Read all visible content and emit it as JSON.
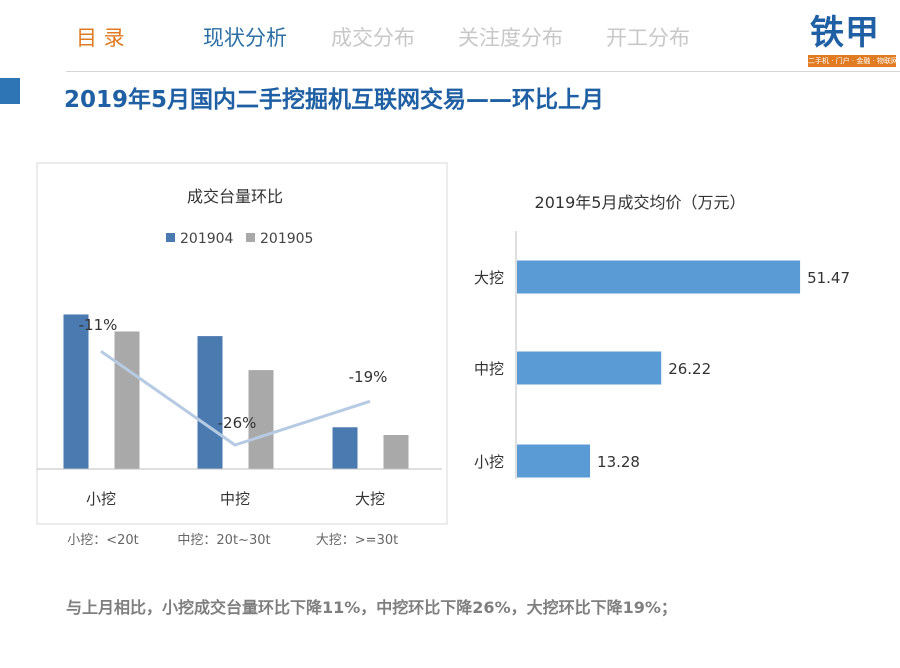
{
  "nav": {
    "toc": "目 录",
    "items": [
      "现状分析",
      "成交分布",
      "关注度分布",
      "开工分布"
    ],
    "active_index": 0
  },
  "logo": {
    "text": "铁甲",
    "tagline": "二手机 · 门户 · 金融 · 物联网"
  },
  "page_title": "2019年5月国内二手挖掘机互联网交易——环比上月",
  "summary": "与上月相比，小挖成交台量环比下降11%，中挖环比下降26%，大挖环比下降19%；",
  "colors": {
    "accent": "#2e75b6",
    "series_a": "#4a7ab0",
    "series_b": "#a9a9a9",
    "trend_line": "#b6cbe3",
    "price_bar": "#5b9bd5",
    "nav_toc": "#e07b22",
    "nav_active": "#2c6fa5",
    "nav_inactive": "#c8c8c8"
  },
  "chart_data": [
    {
      "type": "bar",
      "title": "成交台量环比",
      "categories": [
        "小挖",
        "中挖",
        "大挖"
      ],
      "category_notes": [
        "小挖：<20t",
        "中挖：20t~30t",
        "大挖：>=30t"
      ],
      "series": [
        {
          "name": "201904",
          "values": [
            100,
            86,
            27
          ]
        },
        {
          "name": "201905",
          "values": [
            89,
            64,
            22
          ]
        }
      ],
      "change_line": {
        "values": [
          -11,
          -26,
          -19
        ],
        "labels": [
          "-11%",
          "-26%",
          "-19%"
        ]
      },
      "ylim": [
        0,
        110
      ],
      "legend": "top-center",
      "grid": false
    },
    {
      "type": "bar",
      "orientation": "horizontal",
      "title": "2019年5月成交均价（万元）",
      "categories": [
        "大挖",
        "中挖",
        "小挖"
      ],
      "values": [
        51.47,
        26.22,
        13.28
      ],
      "value_labels": [
        "51.47",
        "26.22",
        "13.28"
      ],
      "xlim": [
        0,
        52
      ],
      "grid": false
    }
  ]
}
